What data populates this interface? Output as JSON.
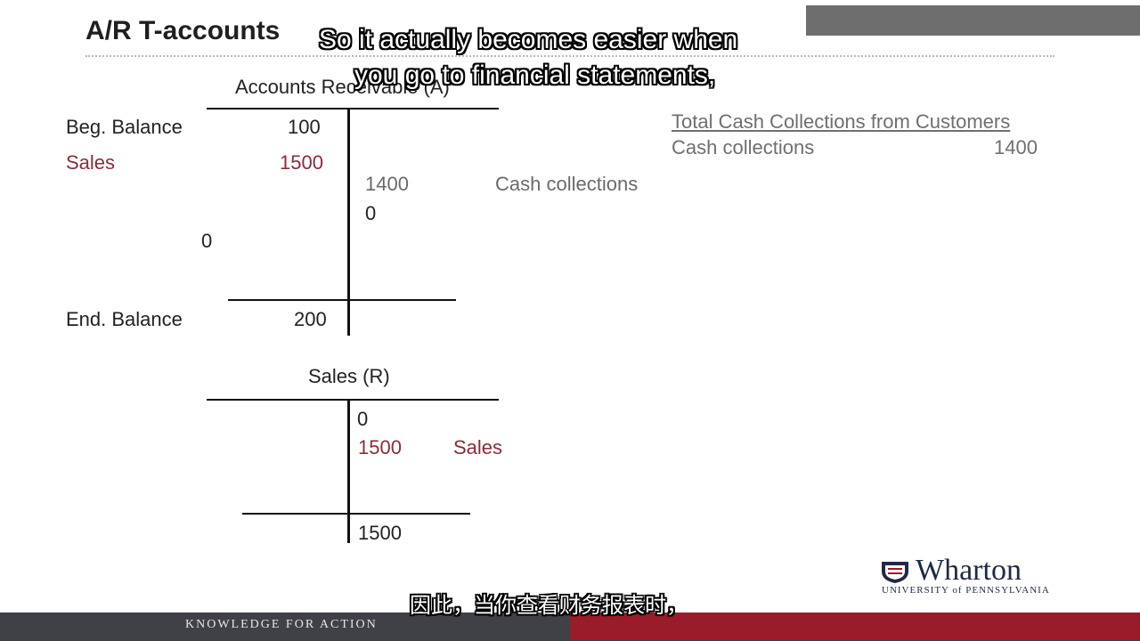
{
  "slide": {
    "title": "A/R T-accounts"
  },
  "subtitles": {
    "english_line1": "So it actually becomes easier when",
    "english_line2": "you go to financial statements,",
    "chinese": "因此，当你查看财务报表时，"
  },
  "ar_account": {
    "title": "Accounts Receivable (A)",
    "rows": {
      "beg_label": "Beg. Balance",
      "beg_value": "100",
      "sales_label": "Sales",
      "sales_value": "1500",
      "credit_value": "1400",
      "credit_label": "Cash collections",
      "credit_zero": "0",
      "debit_zero": "0",
      "end_label": "End. Balance",
      "end_value": "200"
    }
  },
  "sales_account": {
    "title": "Sales (R)",
    "rows": {
      "opening_value": "0",
      "sales_value": "1500",
      "sales_label": "Sales",
      "total_value": "1500"
    }
  },
  "summary": {
    "heading": "Total Cash Collections from Customers",
    "label": "Cash collections",
    "value": "1400"
  },
  "footer": {
    "tagline": "KNOWLEDGE FOR ACTION"
  },
  "logo": {
    "word": "Wharton",
    "subtitle": "UNIVERSITY of PENNSYLVANIA"
  },
  "colors": {
    "accent_red": "#8b2b3b",
    "footer_gray": "#404047",
    "footer_red": "#9a1b2a"
  }
}
